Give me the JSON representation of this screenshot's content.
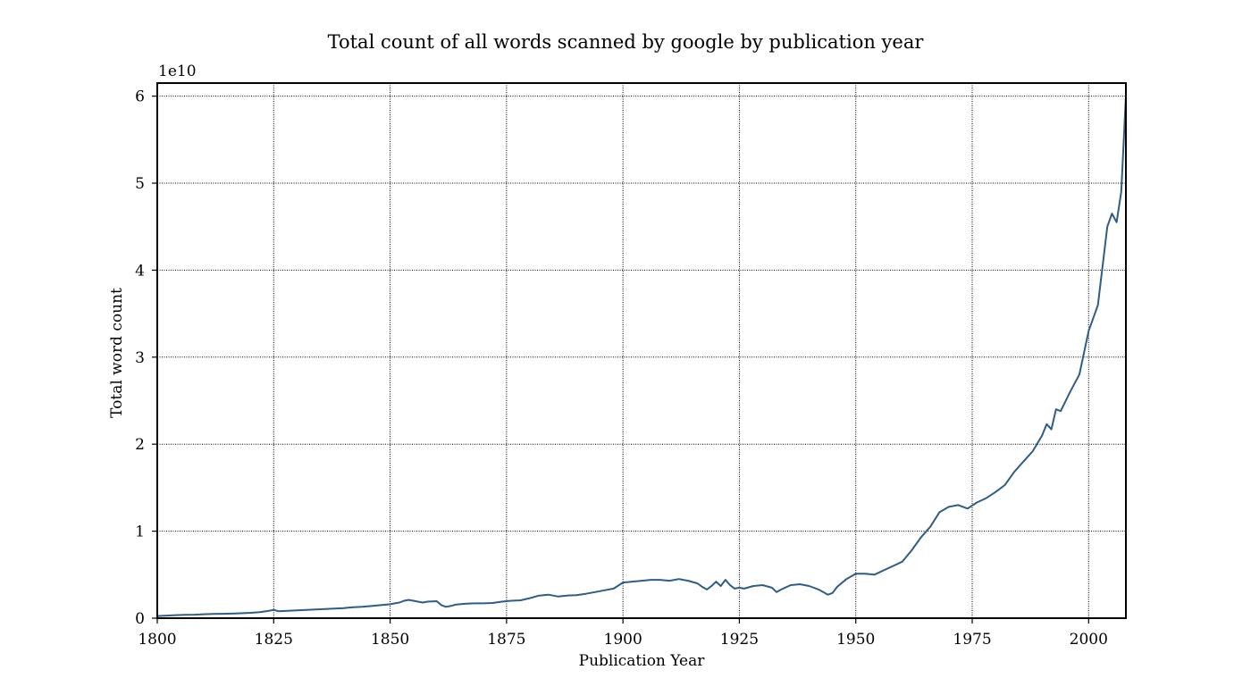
{
  "chart_data": {
    "type": "line",
    "title": "Total count of all words scanned by google by publication year",
    "xlabel": "Publication Year",
    "ylabel": "Total word count",
    "y_offset_label": "1e10",
    "xlim": [
      1800,
      2008
    ],
    "ylim": [
      0,
      61500000000
    ],
    "x_ticks": [
      1800,
      1825,
      1850,
      1875,
      1900,
      1925,
      1950,
      1975,
      2000
    ],
    "x_tick_labels": [
      "1800",
      "1825",
      "1850",
      "1875",
      "1900",
      "1925",
      "1950",
      "1975",
      "2000"
    ],
    "y_ticks": [
      0,
      10000000000,
      20000000000,
      30000000000,
      40000000000,
      50000000000,
      60000000000
    ],
    "y_tick_labels": [
      "0",
      "1",
      "2",
      "3",
      "4",
      "5",
      "6"
    ],
    "grid": true,
    "line_color": "#2f5d87",
    "series": [
      {
        "x": [
          1800,
          1802,
          1804,
          1806,
          1808,
          1810,
          1812,
          1814,
          1816,
          1818,
          1820,
          1822,
          1824,
          1825,
          1826,
          1828,
          1830,
          1832,
          1834,
          1836,
          1838,
          1840,
          1842,
          1844,
          1846,
          1848,
          1850,
          1852,
          1853,
          1854,
          1856,
          1857,
          1858,
          1860,
          1861,
          1862,
          1863,
          1864,
          1866,
          1868,
          1870,
          1872,
          1874,
          1876,
          1878,
          1880,
          1882,
          1884,
          1886,
          1888,
          1890,
          1892,
          1894,
          1896,
          1898,
          1900,
          1902,
          1904,
          1906,
          1908,
          1910,
          1912,
          1914,
          1916,
          1917,
          1918,
          1919,
          1920,
          1921,
          1922,
          1923,
          1924,
          1925,
          1926,
          1928,
          1930,
          1932,
          1933,
          1934,
          1936,
          1938,
          1940,
          1942,
          1943,
          1944,
          1945,
          1946,
          1948,
          1950,
          1952,
          1954,
          1956,
          1958,
          1960,
          1962,
          1964,
          1966,
          1968,
          1970,
          1972,
          1974,
          1976,
          1978,
          1980,
          1982,
          1984,
          1986,
          1988,
          1990,
          1991,
          1992,
          1993,
          1994,
          1996,
          1998,
          2000,
          2002,
          2004,
          2005,
          2006,
          2007,
          2008
        ],
        "y": [
          250000000,
          300000000,
          350000000,
          380000000,
          400000000,
          450000000,
          480000000,
          500000000,
          520000000,
          560000000,
          620000000,
          700000000,
          850000000,
          950000000,
          800000000,
          850000000,
          900000000,
          950000000,
          1000000000,
          1050000000,
          1100000000,
          1150000000,
          1250000000,
          1300000000,
          1400000000,
          1500000000,
          1600000000,
          1800000000,
          2000000000,
          2100000000,
          1900000000,
          1800000000,
          1900000000,
          1950000000,
          1500000000,
          1300000000,
          1400000000,
          1550000000,
          1650000000,
          1700000000,
          1700000000,
          1750000000,
          1900000000,
          2000000000,
          2050000000,
          2300000000,
          2600000000,
          2700000000,
          2500000000,
          2600000000,
          2650000000,
          2800000000,
          3000000000,
          3200000000,
          3400000000,
          4100000000,
          4200000000,
          4300000000,
          4400000000,
          4400000000,
          4300000000,
          4500000000,
          4300000000,
          4000000000,
          3600000000,
          3300000000,
          3700000000,
          4200000000,
          3700000000,
          4400000000,
          3800000000,
          3400000000,
          3500000000,
          3400000000,
          3700000000,
          3800000000,
          3500000000,
          3000000000,
          3300000000,
          3800000000,
          3900000000,
          3700000000,
          3300000000,
          3000000000,
          2700000000,
          2900000000,
          3600000000,
          4500000000,
          5100000000,
          5100000000,
          5000000000,
          5500000000,
          6000000000,
          6500000000,
          7800000000,
          9300000000,
          10500000000,
          12200000000,
          12800000000,
          13000000000,
          12600000000,
          13300000000,
          13800000000,
          14500000000,
          15300000000,
          16800000000,
          18000000000,
          19200000000,
          21000000000,
          22300000000,
          21700000000,
          24000000000,
          23800000000,
          26000000000,
          28000000000,
          33000000000,
          36000000000,
          45000000000,
          46500000000,
          45500000000,
          49000000000,
          60000000000
        ]
      }
    ]
  }
}
